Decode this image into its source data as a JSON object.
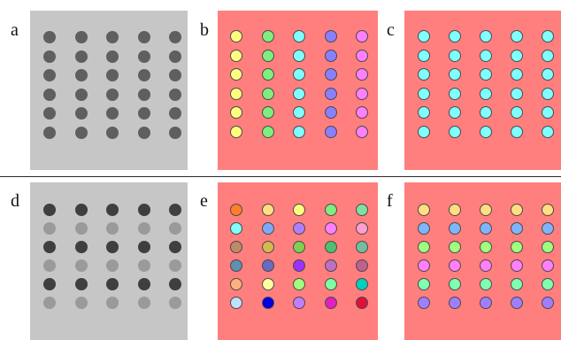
{
  "labels": {
    "a": "a",
    "b": "b",
    "c": "c",
    "d": "d",
    "e": "e",
    "f": "f"
  },
  "colors": {
    "gray_bg": "#c6c6c6",
    "pink_bg": "#ff7f7f",
    "divider": "#2b2b2b"
  },
  "panels": [
    {
      "id": "a",
      "bg": "#c6c6c6",
      "outline": false,
      "rows": [
        [
          "#5f5f5f",
          "#5f5f5f",
          "#5f5f5f",
          "#5f5f5f",
          "#5f5f5f"
        ],
        [
          "#5f5f5f",
          "#5f5f5f",
          "#5f5f5f",
          "#5f5f5f",
          "#5f5f5f"
        ],
        [
          "#5f5f5f",
          "#5f5f5f",
          "#5f5f5f",
          "#5f5f5f",
          "#5f5f5f"
        ],
        [
          "#5f5f5f",
          "#5f5f5f",
          "#5f5f5f",
          "#5f5f5f",
          "#5f5f5f"
        ],
        [
          "#5f5f5f",
          "#5f5f5f",
          "#5f5f5f",
          "#5f5f5f",
          "#5f5f5f"
        ],
        [
          "#5f5f5f",
          "#5f5f5f",
          "#5f5f5f",
          "#5f5f5f",
          "#5f5f5f"
        ]
      ]
    },
    {
      "id": "b",
      "bg": "#ff7f7f",
      "outline": true,
      "rows": [
        [
          "#ffff7f",
          "#7fee7f",
          "#7fffff",
          "#8a7fff",
          "#ff7fff"
        ],
        [
          "#ffff7f",
          "#7fee7f",
          "#7fffff",
          "#8a7fff",
          "#ff7fff"
        ],
        [
          "#ffff7f",
          "#7fee7f",
          "#7fffff",
          "#8a7fff",
          "#ff7fff"
        ],
        [
          "#ffff7f",
          "#7fee7f",
          "#7fffff",
          "#8a7fff",
          "#ff7fff"
        ],
        [
          "#ffff7f",
          "#7fee7f",
          "#7fffff",
          "#8a7fff",
          "#ff7fff"
        ],
        [
          "#ffff7f",
          "#7fee7f",
          "#7fffff",
          "#8a7fff",
          "#ff7fff"
        ]
      ]
    },
    {
      "id": "c",
      "bg": "#ff7f7f",
      "outline": true,
      "rows": [
        [
          "#7fffff",
          "#7fffff",
          "#7fffff",
          "#7fffff",
          "#7fffff"
        ],
        [
          "#7fffff",
          "#7fffff",
          "#7fffff",
          "#7fffff",
          "#7fffff"
        ],
        [
          "#7fffff",
          "#7fffff",
          "#7fffff",
          "#7fffff",
          "#7fffff"
        ],
        [
          "#7fffff",
          "#7fffff",
          "#7fffff",
          "#7fffff",
          "#7fffff"
        ],
        [
          "#7fffff",
          "#7fffff",
          "#7fffff",
          "#7fffff",
          "#7fffff"
        ],
        [
          "#7fffff",
          "#7fffff",
          "#7fffff",
          "#7fffff",
          "#7fffff"
        ]
      ]
    },
    {
      "id": "d",
      "bg": "#c6c6c6",
      "outline": false,
      "rows": [
        [
          "#3f3f3f",
          "#3f3f3f",
          "#3f3f3f",
          "#3f3f3f",
          "#3f3f3f"
        ],
        [
          "#9a9a9a",
          "#9a9a9a",
          "#9a9a9a",
          "#9a9a9a",
          "#9a9a9a"
        ],
        [
          "#3f3f3f",
          "#3f3f3f",
          "#3f3f3f",
          "#3f3f3f",
          "#3f3f3f"
        ],
        [
          "#9a9a9a",
          "#9a9a9a",
          "#9a9a9a",
          "#9a9a9a",
          "#9a9a9a"
        ],
        [
          "#3f3f3f",
          "#3f3f3f",
          "#3f3f3f",
          "#3f3f3f",
          "#3f3f3f"
        ],
        [
          "#9a9a9a",
          "#9a9a9a",
          "#9a9a9a",
          "#9a9a9a",
          "#9a9a9a"
        ]
      ]
    },
    {
      "id": "e",
      "bg": "#ff7f7f",
      "outline": true,
      "rows": [
        [
          "#ff7f2a",
          "#ffdf7f",
          "#ffff7f",
          "#7fee7f",
          "#7fe0a0"
        ],
        [
          "#7fffff",
          "#7fa8ff",
          "#b07fff",
          "#ff7fff",
          "#ff9fd0"
        ],
        [
          "#c08a6a",
          "#d6b84f",
          "#7fd050",
          "#4fc070",
          "#70c0a0"
        ],
        [
          "#5f90b0",
          "#6a6ac0",
          "#9b30ff",
          "#c070c0",
          "#c06090"
        ],
        [
          "#ffb07f",
          "#ffff9f",
          "#a0ff7f",
          "#7fffa0",
          "#00d0c0"
        ],
        [
          "#c0e0ff",
          "#0000e0",
          "#c07fff",
          "#e020c0",
          "#e0103a"
        ]
      ]
    },
    {
      "id": "f",
      "bg": "#ff7f7f",
      "outline": true,
      "rows": [
        [
          "#ffdf7f",
          "#ffdf7f",
          "#ffdf7f",
          "#ffdf7f",
          "#ffdf7f"
        ],
        [
          "#7fb4ff",
          "#7fb4ff",
          "#7fb4ff",
          "#7fb4ff",
          "#7fb4ff"
        ],
        [
          "#a0ff7f",
          "#a0ff7f",
          "#a0ff7f",
          "#a0ff7f",
          "#a0ff7f"
        ],
        [
          "#ff7fff",
          "#ff7fff",
          "#ff7fff",
          "#ff7fff",
          "#ff7fff"
        ],
        [
          "#7fffb0",
          "#7fffb0",
          "#7fffb0",
          "#7fffb0",
          "#7fffb0"
        ],
        [
          "#a07fff",
          "#a07fff",
          "#a07fff",
          "#a07fff",
          "#a07fff"
        ]
      ]
    }
  ]
}
